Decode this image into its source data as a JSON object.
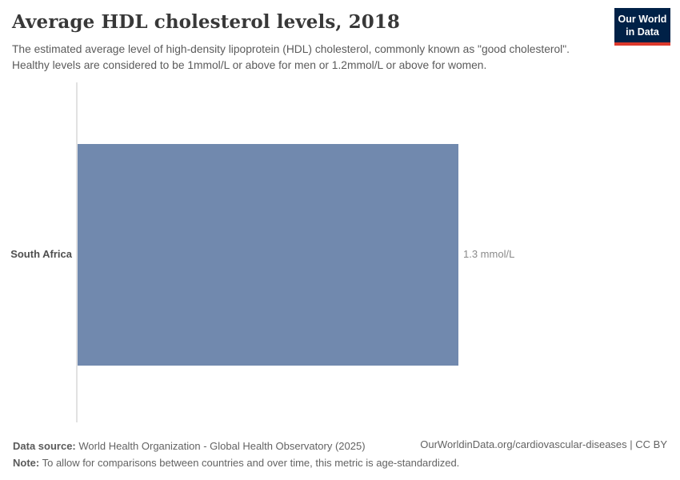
{
  "header": {
    "title": "Average HDL cholesterol levels, 2018",
    "subtitle": "The estimated average level of high-density lipoprotein (HDL) cholesterol, commonly known as \"good cholesterol\". Healthy levels are considered to be 1mmol/L or above for men or 1.2mmol/L or above for women.",
    "logo": {
      "line1": "Our World",
      "line2": "in Data",
      "bg_color": "#002147",
      "accent_color": "#dc392c"
    }
  },
  "chart_data": {
    "type": "bar",
    "orientation": "horizontal",
    "categories": [
      "South Africa"
    ],
    "values": [
      1.3
    ],
    "unit": "mmol/L",
    "value_labels": [
      "1.3 mmol/L"
    ],
    "title": "Average HDL cholesterol levels, 2018",
    "xlabel": "",
    "ylabel": "",
    "xlim": [
      0,
      1.3
    ],
    "bar_color": "#7189ae",
    "grid": false,
    "legend": false
  },
  "footer": {
    "data_source_label": "Data source:",
    "data_source_text": "World Health Organization - Global Health Observatory (2025)",
    "note_label": "Note:",
    "note_text": "To allow for comparisons between countries and over time, this metric is age-standardized.",
    "link_text": "OurWorldinData.org/cardiovascular-diseases | CC BY"
  }
}
